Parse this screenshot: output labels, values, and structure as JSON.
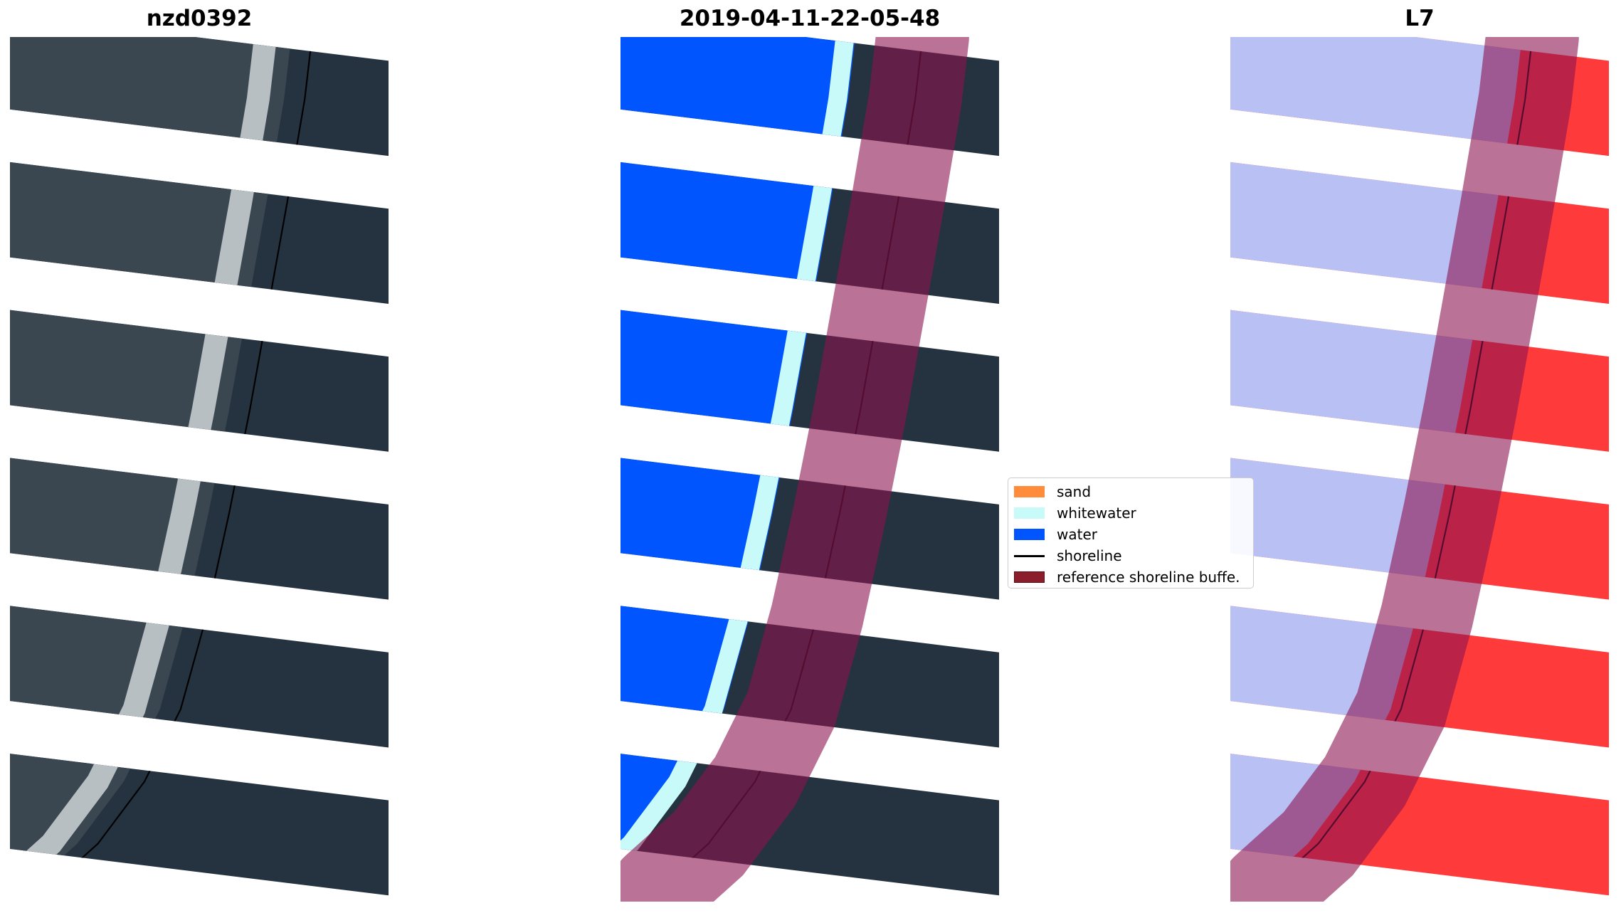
{
  "panels": [
    {
      "title": "nzd0392"
    },
    {
      "title": "2019-04-11-22-05-48"
    },
    {
      "title": "L7"
    }
  ],
  "legend": {
    "items": [
      {
        "label": "sand",
        "color": "#ff8c3a",
        "kind": "patch"
      },
      {
        "label": "whitewater",
        "color": "#c8fafa",
        "kind": "patch"
      },
      {
        "label": "water",
        "color": "#0055ff",
        "kind": "patch"
      },
      {
        "label": "shoreline",
        "color": "#000000",
        "kind": "line"
      },
      {
        "label": "reference shoreline buffe.",
        "color": "#8b1e2a",
        "kind": "patch"
      }
    ]
  },
  "colors": {
    "land": "#253240",
    "surf": "#d8dde0",
    "water_class": "#0055ff",
    "whitewater_class": "#c8fafa",
    "buffer_overlay": "#8c1450",
    "index_water": "#b8c0f4",
    "index_land": "#ff3a3a"
  }
}
